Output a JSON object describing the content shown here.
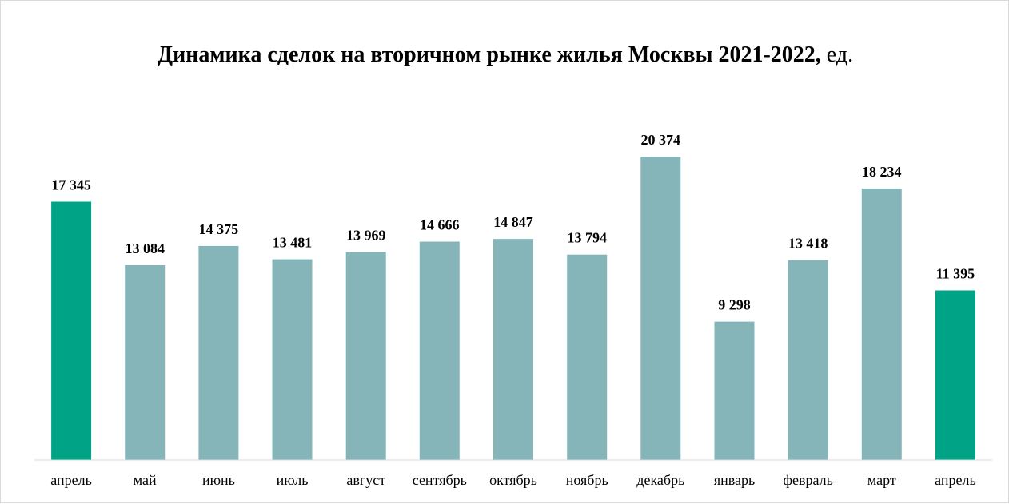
{
  "chart_data": {
    "type": "bar",
    "title": "Динамика сделок на вторичном рынке жилья Москвы 2021-2022,",
    "title_unit": " ед.",
    "categories": [
      "апрель",
      "май",
      "июнь",
      "июль",
      "август",
      "сентябрь",
      "октябрь",
      "ноябрь",
      "декабрь",
      "январь",
      "февраль",
      "март",
      "апрель"
    ],
    "values": [
      17345,
      13084,
      14375,
      13481,
      13969,
      14666,
      14847,
      13794,
      20374,
      9298,
      13418,
      18234,
      11395
    ],
    "value_labels": [
      "17 345",
      "13 084",
      "14 375",
      "13 481",
      "13 969",
      "14 666",
      "14 847",
      "13 794",
      "20 374",
      "9 298",
      "13 418",
      "18 234",
      "11 395"
    ],
    "highlighted_indices": [
      0,
      12
    ],
    "colors": {
      "default": "#85B5B9",
      "highlight": "#00A386",
      "axis": "#d9d9d9"
    },
    "xlabel": "",
    "ylabel": "",
    "ylim": [
      0,
      20374
    ],
    "grid": false,
    "legend": "none"
  }
}
